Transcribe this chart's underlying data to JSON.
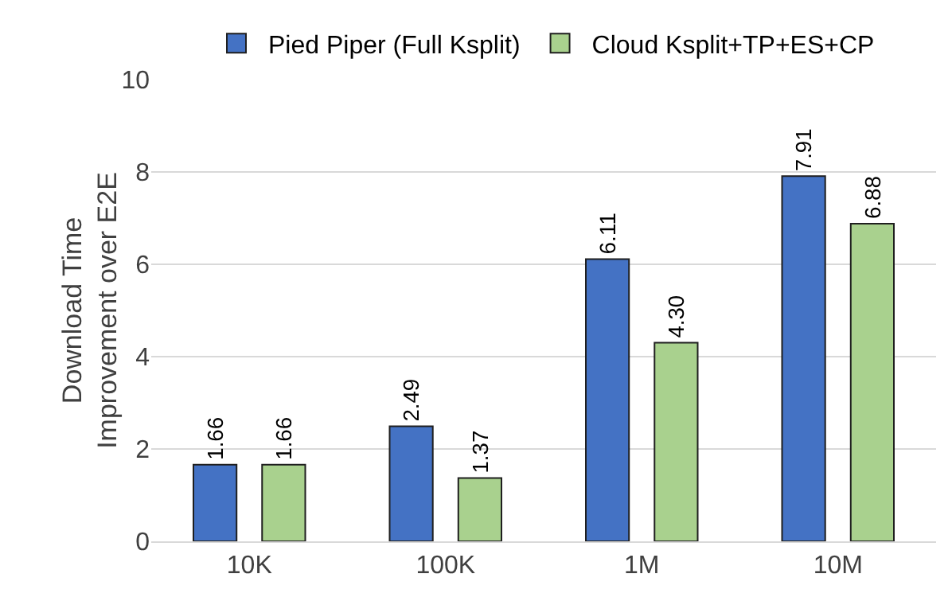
{
  "chart_data": {
    "type": "bar",
    "ylabel": "Download Time\nImprovement over E2E",
    "categories": [
      "10K",
      "100K",
      "1M",
      "10M"
    ],
    "series": [
      {
        "name": "Pied Piper (Full Ksplit)",
        "color": "#4472c4",
        "values": [
          1.66,
          2.49,
          6.11,
          7.91
        ],
        "value_labels": [
          "1.66",
          "2.49",
          "6.11",
          "7.91"
        ]
      },
      {
        "name": "Cloud Ksplit+TP+ES+CP",
        "color": "#a9d18e",
        "values": [
          1.66,
          1.37,
          4.3,
          6.88
        ],
        "value_labels": [
          "1.66",
          "1.37",
          "4.30",
          "6.88"
        ]
      }
    ],
    "ylim": [
      0,
      10
    ],
    "yticks": [
      0,
      2,
      4,
      6,
      8,
      10
    ],
    "grid": "y",
    "legend": "top"
  }
}
